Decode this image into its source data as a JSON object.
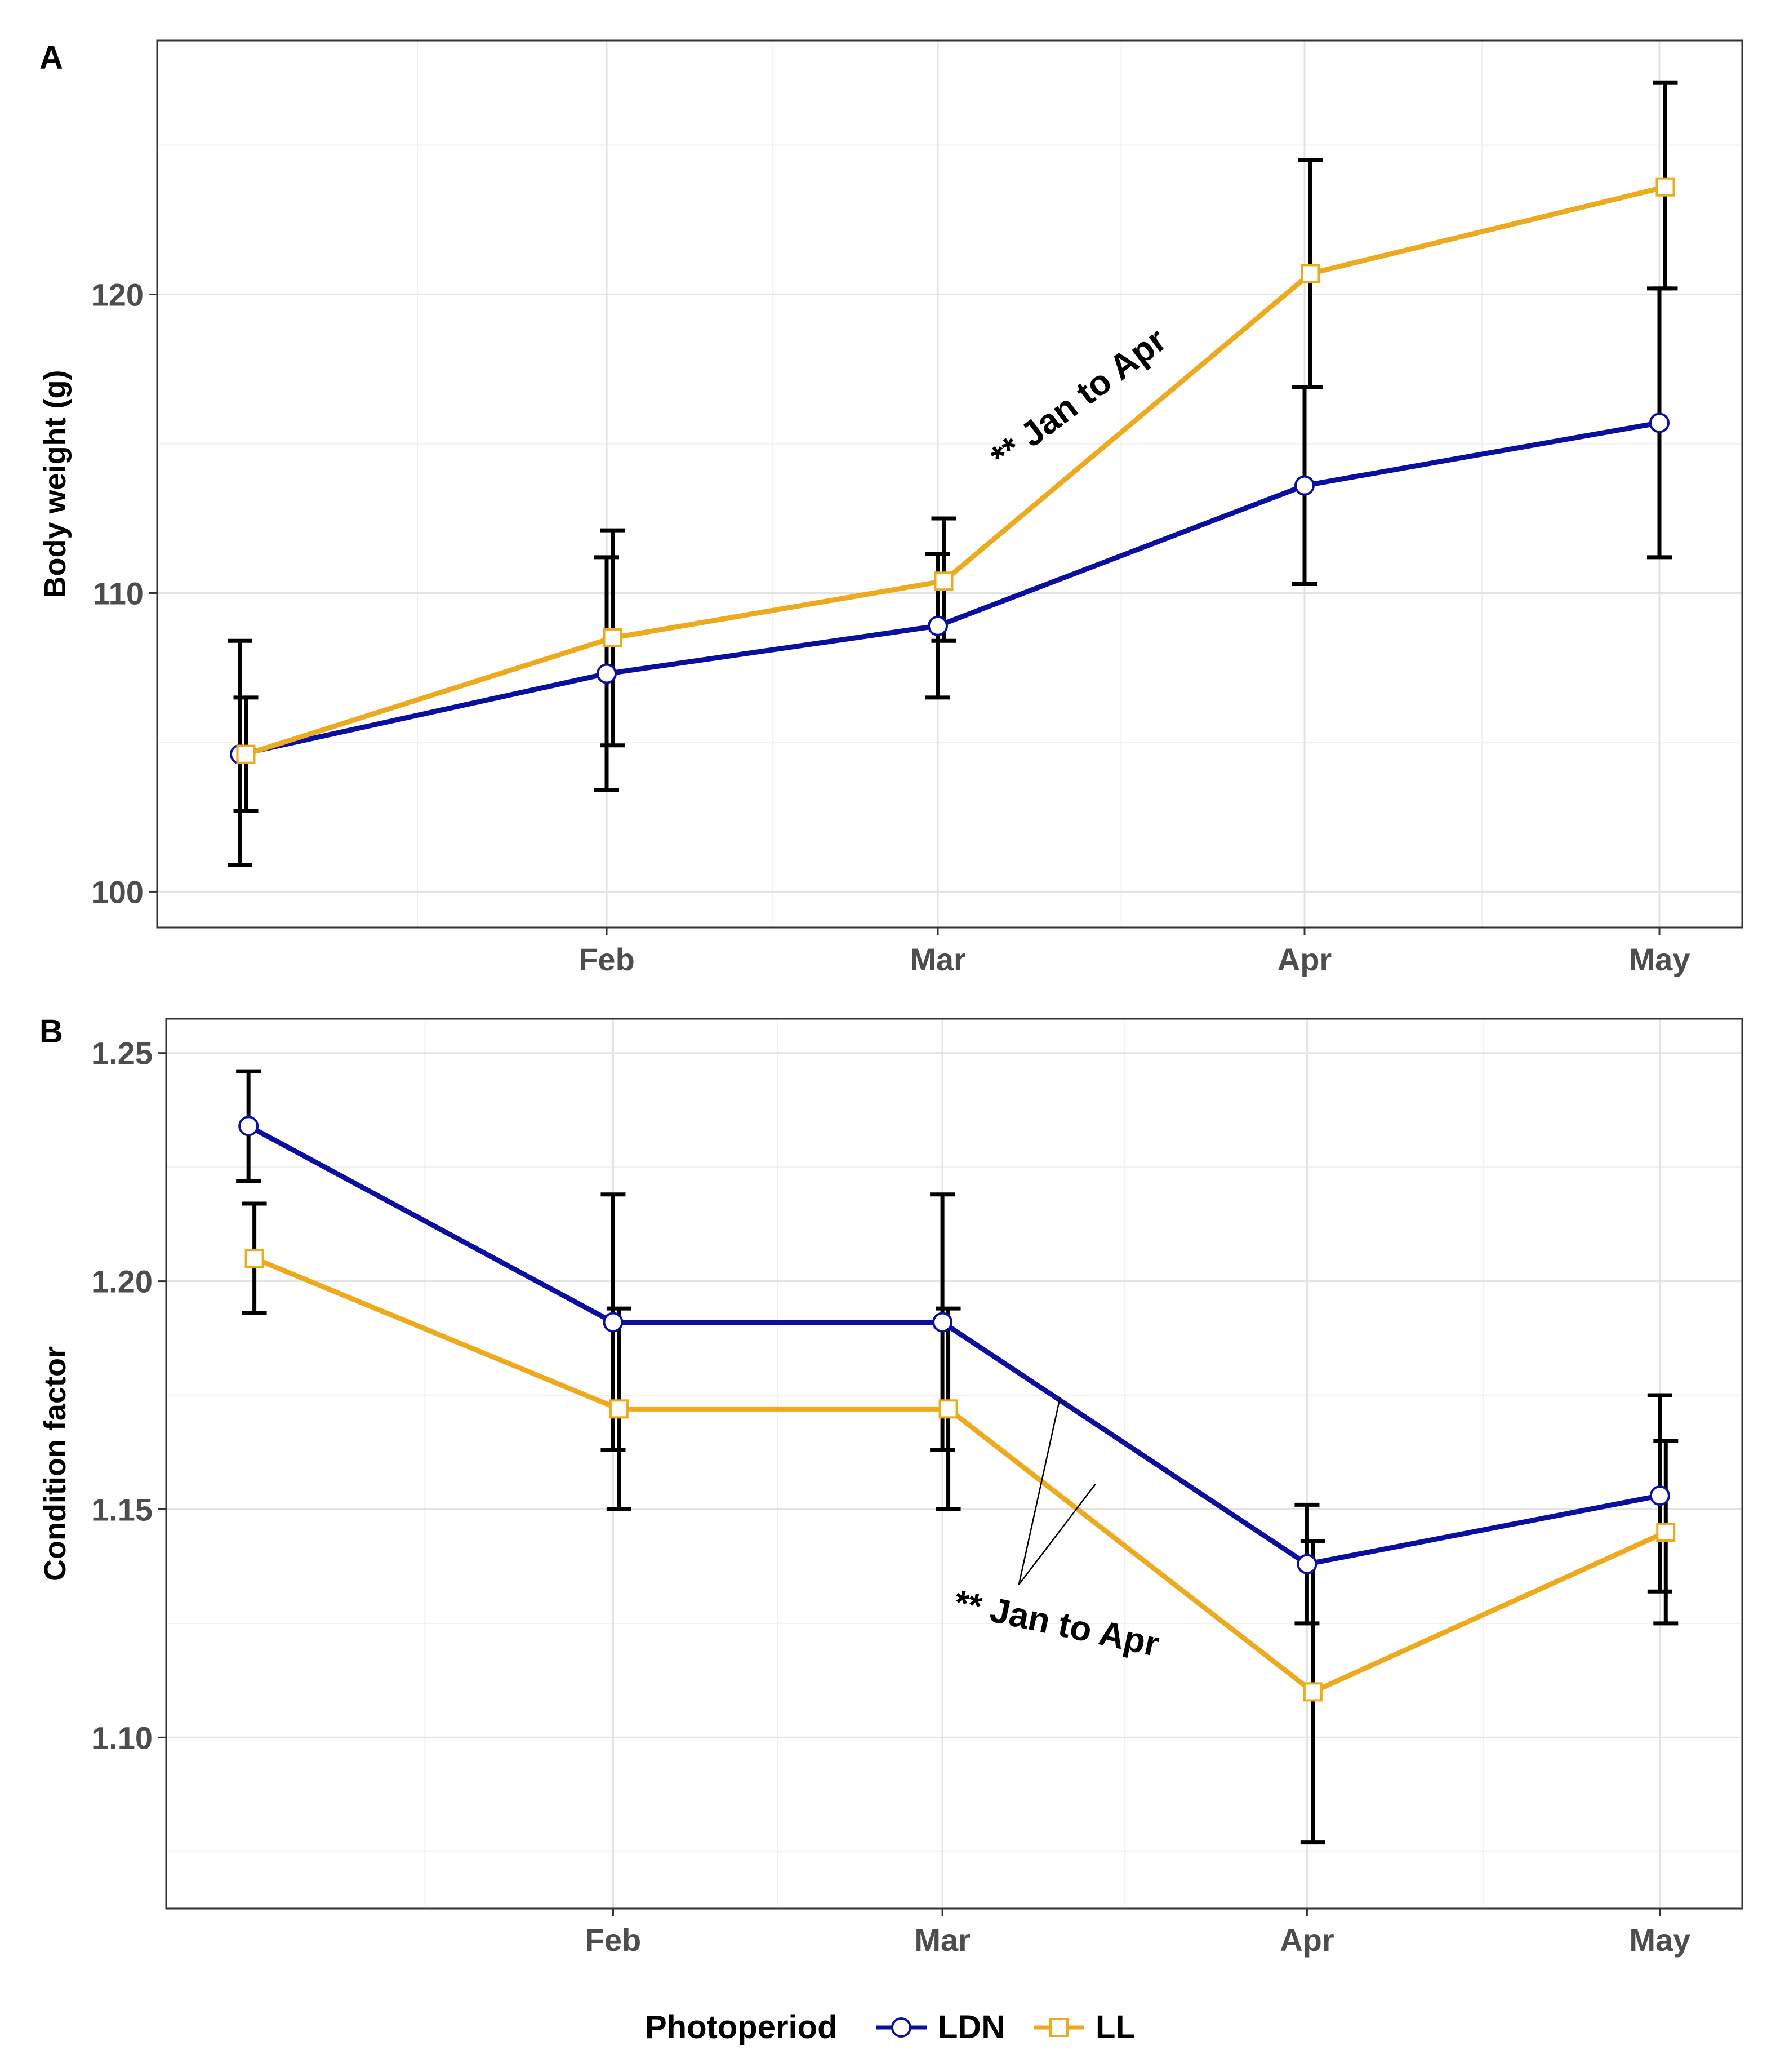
{
  "colors": {
    "LDN": "#0a0fa0",
    "LL": "#eeaa1e",
    "errorbar": "#000000",
    "grid_major": "#e3e3e3",
    "grid_minor": "#f1f1f1",
    "panel_border": "#333333"
  },
  "legend": {
    "title": "Photoperiod",
    "items": [
      {
        "label": "LDN",
        "marker": "circle",
        "color_key": "LDN"
      },
      {
        "label": "LL",
        "marker": "square",
        "color_key": "LL"
      }
    ]
  },
  "chart_data": [
    {
      "panel_label": "A",
      "type": "line",
      "title": "",
      "xlabel": "",
      "ylabel": "Body weight (g)",
      "x_tick_labels": [
        "Feb",
        "Mar",
        "Apr",
        "May"
      ],
      "x_tick_days": [
        31,
        59,
        90,
        120
      ],
      "x_range_days": [
        -7,
        127
      ],
      "x_minor_days": [
        15,
        45,
        74.5,
        105
      ],
      "ylim": [
        98.8,
        128.5
      ],
      "y_ticks": [
        100,
        110,
        120
      ],
      "y_tick_labels": [
        "100",
        "110",
        "120"
      ],
      "y_minor": [
        105,
        115,
        125
      ],
      "grid": true,
      "annotation": {
        "text": "** Jan to Apr",
        "anchor_day": 71.5,
        "anchor_value": 116.2,
        "rotation_deg": -37
      },
      "series": [
        {
          "name": "LDN",
          "marker": "circle",
          "x_days": [
            0,
            31,
            59,
            90,
            120
          ],
          "values": [
            104.6,
            107.3,
            108.9,
            113.6,
            115.7
          ],
          "err_low": [
            100.9,
            103.4,
            106.5,
            110.3,
            111.2
          ],
          "err_high": [
            108.4,
            111.2,
            111.3,
            116.9,
            120.2
          ]
        },
        {
          "name": "LL",
          "marker": "square",
          "x_days": [
            0.5,
            31.5,
            59.5,
            90.5,
            120.5
          ],
          "values": [
            104.6,
            108.5,
            110.4,
            120.7,
            123.6
          ],
          "err_low": [
            102.7,
            104.9,
            108.4,
            116.9,
            120.2
          ],
          "err_high": [
            106.5,
            112.1,
            112.5,
            124.5,
            127.1
          ]
        }
      ]
    },
    {
      "panel_label": "B",
      "type": "line",
      "title": "",
      "xlabel": "",
      "ylabel": "Condition factor",
      "x_tick_labels": [
        "Feb",
        "Mar",
        "Apr",
        "May"
      ],
      "x_tick_days": [
        31,
        59,
        90,
        120
      ],
      "x_range_days": [
        -7,
        127
      ],
      "x_minor_days": [
        15,
        45,
        74.5,
        105
      ],
      "ylim": [
        1.0625,
        1.2575
      ],
      "y_ticks": [
        1.1,
        1.15,
        1.2,
        1.25
      ],
      "y_tick_labels": [
        "1.10",
        "1.15",
        "1.20",
        "1.25"
      ],
      "y_minor": [
        1.075,
        1.125,
        1.175,
        1.225
      ],
      "grid": true,
      "annotation": {
        "text": "** Jan to Apr",
        "anchor_day": 68.5,
        "anchor_value": 1.1225,
        "rotation_deg": 12,
        "pointer_lines": [
          {
            "from_day": 65.5,
            "from_value": 1.1335,
            "to_day": 69,
            "to_value": 1.1745
          },
          {
            "from_day": 65.5,
            "from_value": 1.1335,
            "to_day": 72,
            "to_value": 1.1555
          }
        ]
      },
      "series": [
        {
          "name": "LDN",
          "marker": "circle",
          "x_days": [
            0,
            31,
            59,
            90,
            120
          ],
          "values": [
            1.234,
            1.191,
            1.191,
            1.138,
            1.153
          ],
          "err_low": [
            1.222,
            1.163,
            1.163,
            1.125,
            1.132
          ],
          "err_high": [
            1.246,
            1.219,
            1.219,
            1.151,
            1.175
          ]
        },
        {
          "name": "LL",
          "marker": "square",
          "x_days": [
            0.5,
            31.5,
            59.5,
            90.5,
            120.5
          ],
          "values": [
            1.205,
            1.172,
            1.172,
            1.11,
            1.145
          ],
          "err_low": [
            1.193,
            1.15,
            1.15,
            1.077,
            1.125
          ],
          "err_high": [
            1.217,
            1.194,
            1.194,
            1.143,
            1.165
          ]
        }
      ]
    }
  ]
}
